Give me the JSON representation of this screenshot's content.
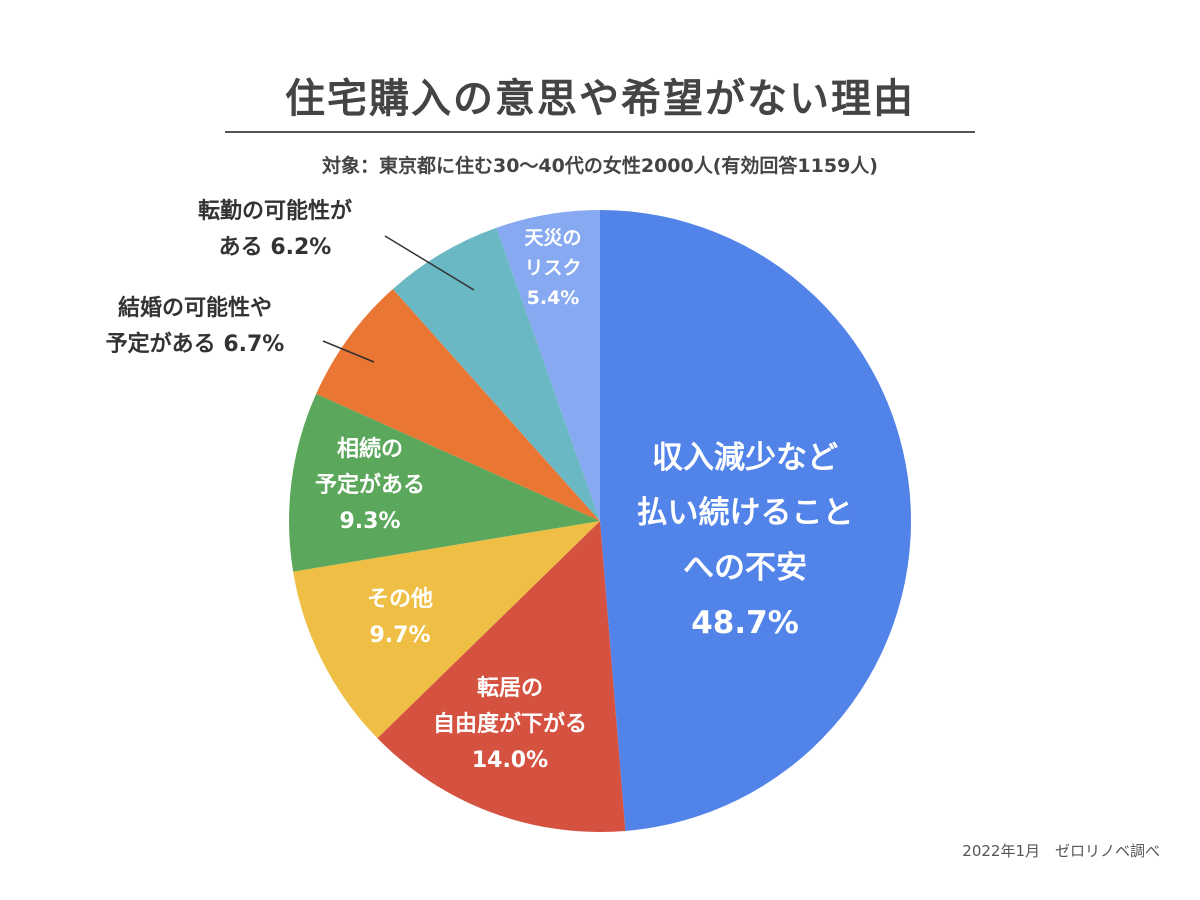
{
  "header": {
    "title": "住宅購入の意思や希望がない理由",
    "subtitle": "対象：東京都に住む30〜40代の女性2000人(有効回答1159人)"
  },
  "footer": {
    "source": "2022年1月　ゼロリノベ調べ"
  },
  "chart_data": {
    "type": "pie",
    "title": "住宅購入の意思や希望がない理由",
    "start": "12 o'clock",
    "direction": "clockwise",
    "slices": [
      {
        "label": "収入減少など払い続けることへの不安",
        "lines": [
          "収入減少など",
          "払い続けること",
          "への不安"
        ],
        "value_label": "48.7%",
        "value": 48.7,
        "color": "#5283E9",
        "label_placement": "inside"
      },
      {
        "label": "転居の自由度が下がる",
        "lines": [
          "転居の",
          "自由度が下がる"
        ],
        "value_label": "14.0%",
        "value": 14.0,
        "color": "#D55140",
        "label_placement": "inside"
      },
      {
        "label": "その他",
        "lines": [
          "その他"
        ],
        "value_label": "9.7%",
        "value": 9.7,
        "color": "#EFBE44",
        "label_placement": "inside"
      },
      {
        "label": "相続の予定がある",
        "lines": [
          "相続の",
          "予定がある"
        ],
        "value_label": "9.3%",
        "value": 9.3,
        "color": "#5BA85C",
        "label_placement": "inside"
      },
      {
        "label": "結婚の可能性や予定がある",
        "lines": [
          "結婚の可能性や",
          "予定がある 6.7%"
        ],
        "value_label": "",
        "value": 6.7,
        "color": "#EA7634",
        "label_placement": "outside"
      },
      {
        "label": "転勤の可能性がある",
        "lines": [
          "転勤の可能性が",
          "ある 6.2%"
        ],
        "value_label": "",
        "value": 6.2,
        "color": "#6BB8C5",
        "label_placement": "outside"
      },
      {
        "label": "天災のリスク",
        "lines": [
          "天災の",
          "リスク"
        ],
        "value_label": "5.4%",
        "value": 5.4,
        "color": "#87A9F1",
        "label_placement": "inside"
      }
    ]
  }
}
